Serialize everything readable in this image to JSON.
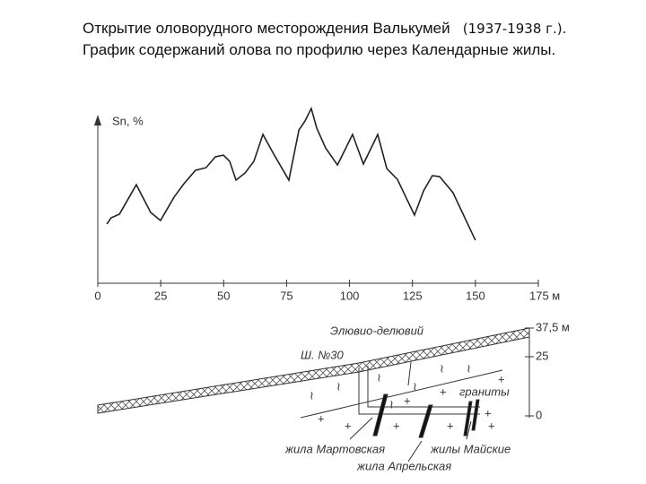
{
  "header": {
    "title": "Открытие оловорудного месторождения Валькумей",
    "dates": "(1937-1938 г.).",
    "subtitle": "График содержаний олова  по профилю через Календарные жилы."
  },
  "chart_data": {
    "type": "line",
    "y_label": "Sn, %",
    "x": [
      3.6,
      5.3,
      8.6,
      15.3,
      21,
      24.9,
      30.3,
      34.2,
      38.8,
      43,
      46.7,
      49.9,
      52.4,
      54.9,
      58.5,
      62,
      65.6,
      69.9,
      75.9,
      79.9,
      82.3,
      84.8,
      87,
      90.5,
      95.2,
      101.2,
      105.5,
      111.2,
      114.8,
      119,
      125.8,
      129.4,
      132.9,
      135.8,
      141.1,
      150
    ],
    "series": [
      {
        "color": "#222222",
        "values": [
          43.8,
          48.4,
          51.1,
          72.9,
          52.4,
          46.4,
          63.7,
          73.6,
          83.6,
          85.5,
          93.5,
          94.8,
          90.2,
          76.3,
          81.6,
          90.2,
          110.1,
          95.5,
          76.3,
          113.4,
          120,
          129.3,
          114.7,
          100.1,
          87.5,
          110.1,
          88.2,
          110.1,
          84.9,
          76.9,
          50.4,
          68.3,
          79.6,
          78.9,
          67,
          31.8
        ]
      }
    ],
    "xlim": [
      0,
      175
    ],
    "ylim": [
      0,
      130
    ],
    "xticks": [
      0,
      25,
      50,
      75,
      100,
      125,
      150,
      {
        "value": 175,
        "label": "175 м"
      }
    ]
  },
  "diagram": {
    "cover": "Элювио-делювий",
    "shaft": "Ш. №30",
    "granite": "граниты",
    "vein_1": "жила Мартовская",
    "vein_2": "жила Апрельская",
    "vein_3": "жилы Майские",
    "scale": [
      "37,5 м",
      "25",
      "0"
    ]
  }
}
